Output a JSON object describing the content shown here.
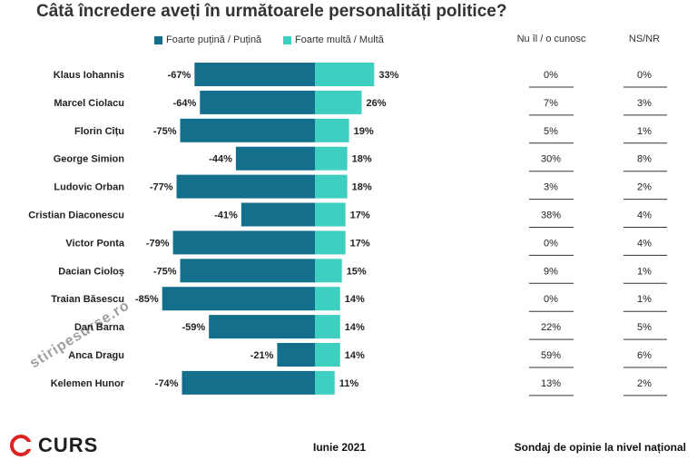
{
  "title": "Câtă încredere aveți în următoarele personalități politice?",
  "legend": {
    "negative_label": "Foarte puțină / Puțină",
    "positive_label": "Foarte multă / Multă",
    "negative_color": "#136f8c",
    "positive_color": "#3ecfc0"
  },
  "columns": {
    "unknown": "Nu îl / o cunosc",
    "nsnr": "NS/NR"
  },
  "chart_data": {
    "type": "bar",
    "orientation": "horizontal-diverging",
    "categories": [
      "Klaus Iohannis",
      "Marcel Ciolacu",
      "Florin Cîțu",
      "George Simion",
      "Ludovic Orban",
      "Cristian Diaconescu",
      "Victor Ponta",
      "Dacian Cioloș",
      "Traian Băsescu",
      "Dan Barna",
      "Anca Dragu",
      "Kelemen Hunor"
    ],
    "series": [
      {
        "name": "Foarte puțină / Puțină",
        "values": [
          -67,
          -64,
          -75,
          -44,
          -77,
          -41,
          -79,
          -75,
          -85,
          -59,
          -21,
          -74
        ]
      },
      {
        "name": "Foarte multă / Multă",
        "values": [
          33,
          26,
          19,
          18,
          18,
          17,
          17,
          15,
          14,
          14,
          14,
          11
        ]
      }
    ],
    "neg_labels": [
      "-67%",
      "-64%",
      "-75%",
      "-44%",
      "-77%",
      "-41%",
      "-79%",
      "-75%",
      "-85%",
      "-59%",
      "-21%",
      "-74%"
    ],
    "pos_labels": [
      "33%",
      "26%",
      "19%",
      "18%",
      "18%",
      "17%",
      "17%",
      "15%",
      "14%",
      "14%",
      "14%",
      "11%"
    ],
    "unknown_labels": [
      "0%",
      "7%",
      "5%",
      "30%",
      "3%",
      "38%",
      "0%",
      "9%",
      "0%",
      "22%",
      "59%",
      "13%"
    ],
    "nsnr_labels": [
      "0%",
      "3%",
      "1%",
      "8%",
      "2%",
      "4%",
      "4%",
      "1%",
      "1%",
      "5%",
      "6%",
      "2%"
    ]
  },
  "footer": {
    "date": "Iunie 2021",
    "note": "Sondaj de opinie la nivel național",
    "logo": "CURS",
    "watermark": "stiripesurse.ro"
  }
}
